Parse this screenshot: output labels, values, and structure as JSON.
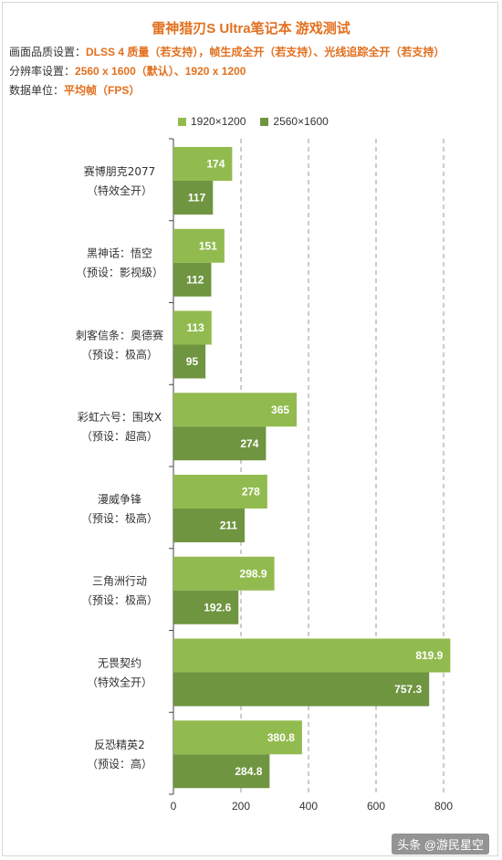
{
  "header": {
    "title": "雷神猎刃S Ultra笔记本 游戏测试",
    "rows": [
      {
        "label": "画面品质设置：",
        "value": "DLSS 4 质量（若支持），帧生成全开（若支持）、光线追踪全开（若支持）"
      },
      {
        "label": "分辨率设置：",
        "value": "2560 x 1600（默认）、1920 x 1200"
      },
      {
        "label": "数据单位：",
        "value": "平均帧（FPS）"
      }
    ]
  },
  "colors": {
    "series1": "#92bb4f",
    "series2": "#6f9540",
    "accent": "#e2701f"
  },
  "watermark": "头条 @游民星空",
  "chart_data": {
    "type": "bar",
    "orientation": "horizontal",
    "categories": [
      [
        "赛博朋克2077",
        "（特效全开）"
      ],
      [
        "黑神话：悟空",
        "（预设：影视级）"
      ],
      [
        "刺客信条：奥德赛",
        "（预设：极高）"
      ],
      [
        "彩虹六号：围攻X",
        "（预设：超高）"
      ],
      [
        "漫威争锋",
        "（预设：极高）"
      ],
      [
        "三角洲行动",
        "（预设：极高）"
      ],
      [
        "无畏契约",
        "（特效全开）"
      ],
      [
        "反恐精英2",
        "（预设：高）"
      ]
    ],
    "series": [
      {
        "name": "1920×1200",
        "values": [
          174,
          151,
          113,
          365,
          278,
          298.9,
          819.9,
          380.8
        ],
        "labels": [
          "174",
          "151",
          "113",
          "365",
          "278",
          "298.9",
          "819.9",
          "380.8"
        ]
      },
      {
        "name": "2560×1600",
        "values": [
          117,
          112,
          95,
          274,
          211,
          192.6,
          757.3,
          284.8
        ],
        "labels": [
          "117",
          "112",
          "95",
          "274",
          "211",
          "192.6",
          "757.3",
          "284.8"
        ]
      }
    ],
    "xlim": [
      0,
      800
    ],
    "xticks": [
      0,
      200,
      400,
      600,
      800
    ],
    "grid": "vertical-dashed",
    "legend": "top"
  }
}
